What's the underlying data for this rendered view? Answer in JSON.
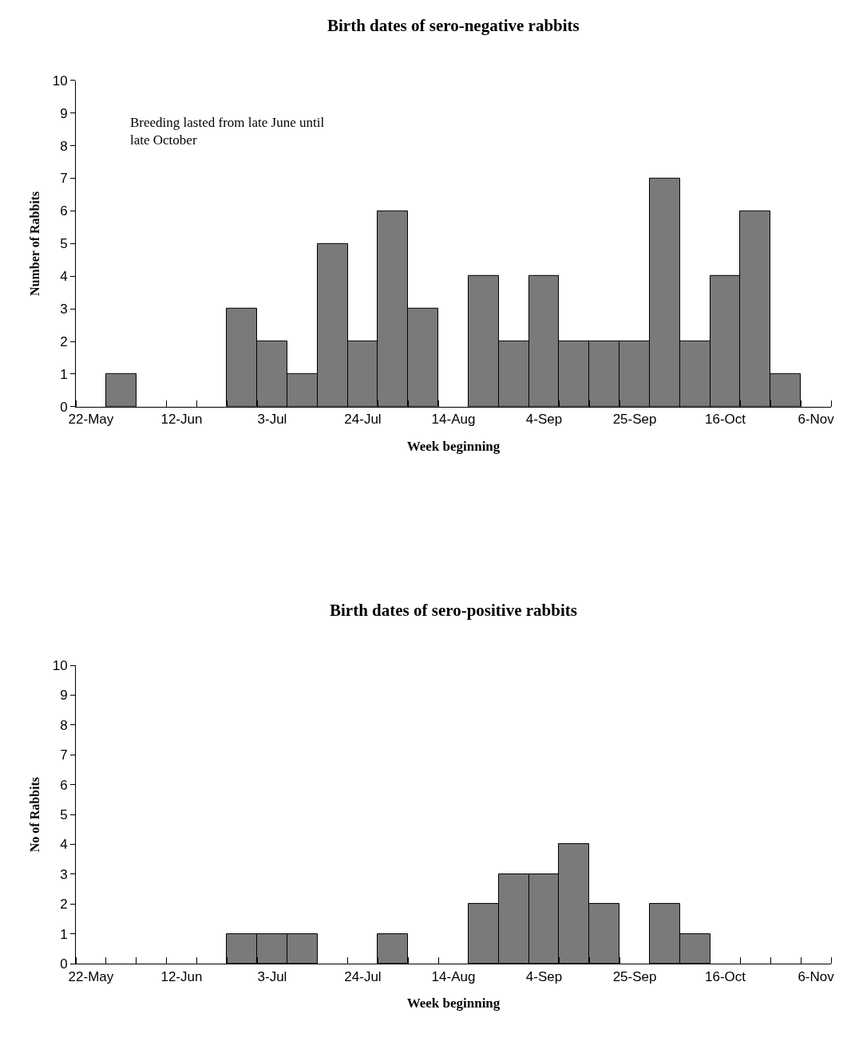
{
  "chart_data": [
    {
      "type": "bar",
      "title": "Birth dates of sero-negative rabbits",
      "xlabel": "Week beginning",
      "ylabel": "Number of Rabbits",
      "categories": [
        "22-May",
        null,
        null,
        "12-Jun",
        null,
        null,
        "3-Jul",
        null,
        null,
        "24-Jul",
        null,
        null,
        "14-Aug",
        null,
        null,
        "4-Sep",
        null,
        null,
        "25-Sep",
        null,
        null,
        "16-Oct",
        null,
        null,
        "6-Nov"
      ],
      "values": [
        0,
        1,
        0,
        0,
        0,
        3,
        2,
        1,
        5,
        2,
        6,
        3,
        0,
        4,
        2,
        4,
        2,
        2,
        2,
        7,
        2,
        4,
        6,
        1,
        0
      ],
      "color": "#7a7a7a",
      "ylim": [
        0,
        10
      ],
      "yticks": [
        0,
        1,
        2,
        3,
        4,
        5,
        6,
        7,
        8,
        9,
        10
      ],
      "annotations": [
        "Breeding lasted from late June until late October"
      ]
    },
    {
      "type": "bar",
      "title": "Birth dates of sero-positive rabbits",
      "xlabel": "Week beginning",
      "ylabel": "No of Rabbits",
      "categories": [
        "22-May",
        null,
        null,
        "12-Jun",
        null,
        null,
        "3-Jul",
        null,
        null,
        "24-Jul",
        null,
        null,
        "14-Aug",
        null,
        null,
        "4-Sep",
        null,
        null,
        "25-Sep",
        null,
        null,
        "16-Oct",
        null,
        null,
        "6-Nov"
      ],
      "values": [
        0,
        0,
        0,
        0,
        0,
        1,
        1,
        1,
        0,
        0,
        1,
        0,
        0,
        2,
        3,
        3,
        4,
        2,
        0,
        2,
        1,
        0,
        0,
        0,
        0
      ],
      "color": "#7a7a7a",
      "ylim": [
        0,
        10
      ],
      "yticks": [
        0,
        1,
        2,
        3,
        4,
        5,
        6,
        7,
        8,
        9,
        10
      ]
    }
  ]
}
